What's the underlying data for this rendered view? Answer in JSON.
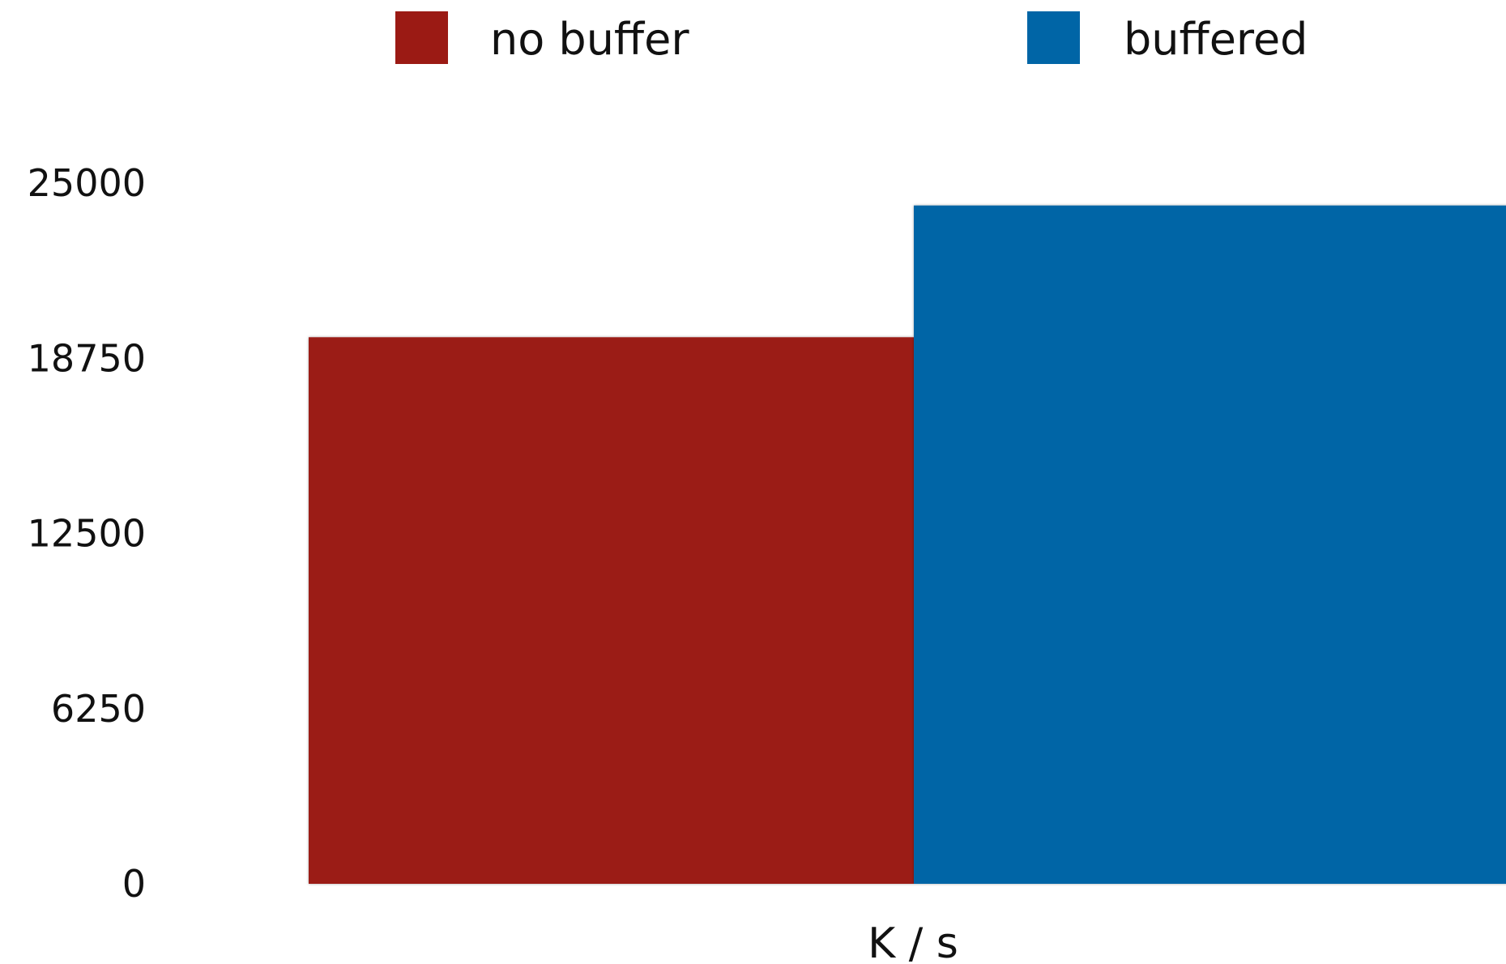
{
  "chart_data": {
    "type": "bar",
    "categories": [
      "K / s"
    ],
    "series": [
      {
        "name": "no buffer",
        "color": "#9b1a14",
        "values": [
          19500
        ]
      },
      {
        "name": "buffered",
        "color": "#0065a6",
        "values": [
          24200
        ]
      }
    ],
    "yticks": [
      "0",
      "6250",
      "12500",
      "18750",
      "25000"
    ],
    "ylim": [
      0,
      25000
    ],
    "grid": false,
    "legend_position": "top"
  }
}
